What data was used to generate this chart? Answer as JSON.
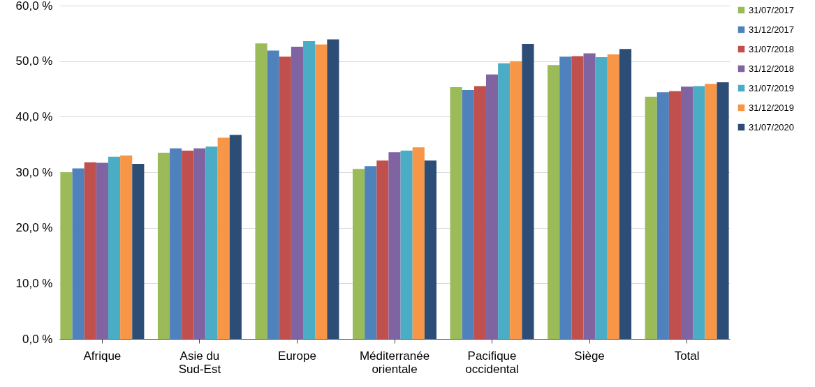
{
  "chart_data": {
    "type": "bar",
    "categories": [
      "Afrique",
      "Asie du Sud-Est",
      "Europe",
      "Méditerranée orientale",
      "Pacifique occidental",
      "Siège",
      "Total"
    ],
    "series": [
      {
        "name": "31/07/2017",
        "color": "#9bbb59",
        "values": [
          30.0,
          33.5,
          53.2,
          30.6,
          45.3,
          49.3,
          43.6
        ]
      },
      {
        "name": "31/12/2017",
        "color": "#4f81bd",
        "values": [
          30.7,
          34.3,
          51.9,
          31.1,
          44.8,
          50.8,
          44.4
        ]
      },
      {
        "name": "31/07/2018",
        "color": "#c0504d",
        "values": [
          31.8,
          33.9,
          50.8,
          32.1,
          45.5,
          50.9,
          44.6
        ]
      },
      {
        "name": "31/12/2018",
        "color": "#8064a2",
        "values": [
          31.7,
          34.3,
          52.6,
          33.6,
          47.6,
          51.4,
          45.4
        ]
      },
      {
        "name": "31/07/2019",
        "color": "#4bacc6",
        "values": [
          32.8,
          34.6,
          53.6,
          33.9,
          49.6,
          50.7,
          45.5
        ]
      },
      {
        "name": "31/12/2019",
        "color": "#f79646",
        "values": [
          33.0,
          36.2,
          53.0,
          34.5,
          50.0,
          51.2,
          45.9
        ]
      },
      {
        "name": "31/07/2020",
        "color": "#2c4d75",
        "values": [
          31.5,
          36.7,
          53.9,
          32.1,
          53.1,
          52.2,
          46.2
        ]
      }
    ],
    "ylim": [
      0,
      60
    ],
    "yticks": [
      {
        "value": 0,
        "label": "0,0 %"
      },
      {
        "value": 10,
        "label": "10,0 %"
      },
      {
        "value": 20,
        "label": "20,0 %"
      },
      {
        "value": 30,
        "label": "30,0 %"
      },
      {
        "value": 40,
        "label": "40,0 %"
      },
      {
        "value": 50,
        "label": "50,0 %"
      },
      {
        "value": 60,
        "label": "60,0 %"
      }
    ],
    "grid": "y",
    "legend": "right"
  }
}
